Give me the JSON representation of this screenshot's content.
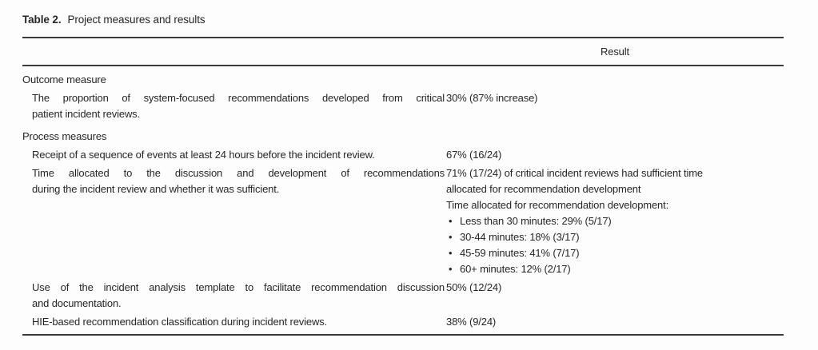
{
  "table": {
    "caption_label": "Table 2.",
    "caption_title": "Project measures and results",
    "header": {
      "measure": "",
      "result": "Result"
    },
    "sections": [
      {
        "title": "Outcome measure",
        "rows": [
          {
            "measure_lines": [
              "The proportion of system-focused recommendations developed from critical",
              "patient incident reviews."
            ],
            "result_lines": [
              "30% (87% increase)"
            ]
          }
        ]
      },
      {
        "title": "Process measures",
        "rows": [
          {
            "measure_lines": [
              "Receipt of a sequence of events at least 24 hours before the incident review."
            ],
            "result_lines": [
              "67% (16/24)"
            ]
          },
          {
            "measure_lines": [
              "Time allocated to the discussion and development of recommendations",
              "during the incident review and whether it was sufficient."
            ],
            "result_lines": [
              "71% (17/24) of critical incident reviews had sufficient time",
              "allocated for recommendation development",
              "Time allocated for recommendation development:"
            ],
            "result_bullets": [
              "Less than 30 minutes: 29% (5/17)",
              "30-44 minutes: 18% (3/17)",
              "45-59 minutes: 41% (7/17)",
              "60+ minutes: 12% (2/17)"
            ]
          },
          {
            "measure_lines": [
              "Use of the incident analysis template to facilitate recommendation discussion",
              "and documentation."
            ],
            "result_lines": [
              "50% (12/24)"
            ]
          },
          {
            "measure_lines": [
              "HIE-based recommendation classification during incident reviews."
            ],
            "result_lines": [
              "38% (9/24)"
            ]
          }
        ]
      }
    ]
  }
}
